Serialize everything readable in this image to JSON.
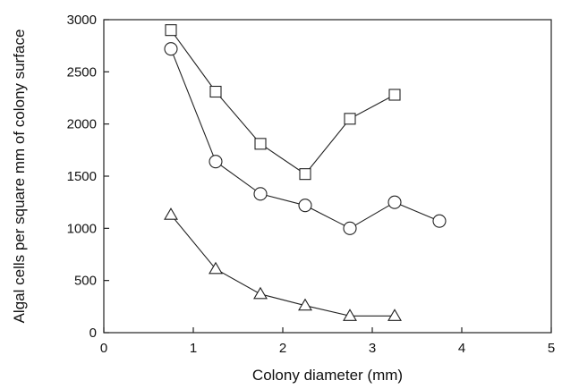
{
  "chart_data": {
    "type": "line",
    "title": "",
    "xlabel": "Colony diameter (mm)",
    "ylabel": "Algal cells per square mm of colony surface",
    "xlim": [
      0,
      5
    ],
    "ylim": [
      0,
      3000
    ],
    "x_ticks": [
      0,
      1,
      2,
      3,
      4,
      5
    ],
    "y_ticks": [
      0,
      500,
      1000,
      1500,
      2000,
      2500,
      3000
    ],
    "grid": false,
    "legend": "none",
    "series": [
      {
        "marker": "square",
        "x": [
          0.75,
          1.25,
          1.75,
          2.25,
          2.75,
          3.25
        ],
        "y": [
          2900,
          2310,
          1810,
          1520,
          2050,
          2280
        ]
      },
      {
        "marker": "circle",
        "x": [
          0.75,
          1.25,
          1.75,
          2.25,
          2.75,
          3.25,
          3.75
        ],
        "y": [
          2720,
          1640,
          1330,
          1220,
          1000,
          1250,
          1070
        ]
      },
      {
        "marker": "triangle",
        "x": [
          0.75,
          1.25,
          1.75,
          2.25,
          2.75,
          3.25
        ],
        "y": [
          1130,
          610,
          370,
          260,
          160,
          160
        ]
      }
    ]
  },
  "colors": {
    "line": "#222222",
    "marker_fill": "#ffffff",
    "background": "#ffffff"
  }
}
